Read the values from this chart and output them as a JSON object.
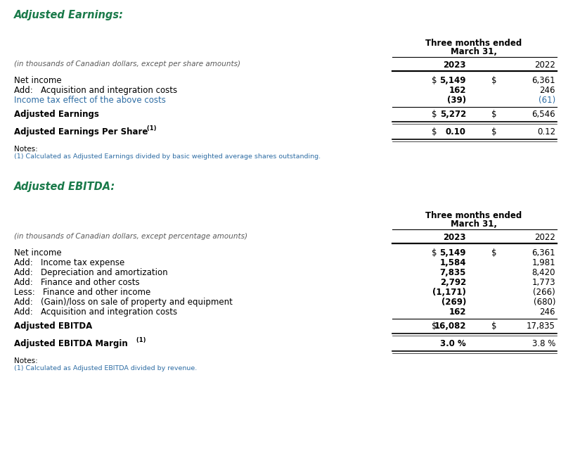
{
  "bg_color": "#ffffff",
  "green_color": "#1a7a4a",
  "blue_color": "#2e6da4",
  "black_color": "#000000",
  "gray_color": "#595959",
  "section1_title": "Adjusted Earnings:",
  "section1_subtitle": "(in thousands of Canadian dollars, except per share amounts)",
  "section1_header1": "Three months ended",
  "section1_header2": "March 31,",
  "section1_col2023": "2023",
  "section1_col2022": "2022",
  "section1_rows": [
    {
      "label": "Net income",
      "col2023": "5,149",
      "col2022": "6,361",
      "dollar2023": true,
      "dollar2022": true,
      "blue": false
    },
    {
      "label": "Add:   Acquisition and integration costs",
      "col2023": "162",
      "col2022": "246",
      "dollar2023": false,
      "dollar2022": false,
      "blue": false
    },
    {
      "label": "Income tax effect of the above costs",
      "col2023": "(39)",
      "col2022": "(61)",
      "dollar2023": false,
      "dollar2022": false,
      "blue": true
    }
  ],
  "section1_total_row": {
    "label": "Adjusted Earnings",
    "col2023": "5,272",
    "col2022": "6,546",
    "dollar2023": true,
    "dollar2022": true
  },
  "section1_per_share_row": {
    "label": "Adjusted Earnings Per Share",
    "superscript": " (1)",
    "col2023": "0.10",
    "col2022": "0.12",
    "dollar2023": true,
    "dollar2022": true
  },
  "section1_notes_title": "Notes:",
  "section1_notes_1": "(1) Calculated as Adjusted Earnings divided by basic weighted average shares outstanding.",
  "section2_title": "Adjusted EBITDA:",
  "section2_subtitle": "(in thousands of Canadian dollars, except percentage amounts)",
  "section2_header1": "Three months ended",
  "section2_header2": "March 31,",
  "section2_col2023": "2023",
  "section2_col2022": "2022",
  "section2_rows": [
    {
      "label": "Net income",
      "col2023": "5,149",
      "col2022": "6,361",
      "dollar2023": true,
      "dollar2022": true
    },
    {
      "label": "Add:   Income tax expense",
      "col2023": "1,584",
      "col2022": "1,981",
      "dollar2023": false,
      "dollar2022": false
    },
    {
      "label": "Add:   Depreciation and amortization",
      "col2023": "7,835",
      "col2022": "8,420",
      "dollar2023": false,
      "dollar2022": false
    },
    {
      "label": "Add:   Finance and other costs",
      "col2023": "2,792",
      "col2022": "1,773",
      "dollar2023": false,
      "dollar2022": false
    },
    {
      "label": "Less:   Finance and other income",
      "col2023": "(1,171)",
      "col2022": "(266)",
      "dollar2023": false,
      "dollar2022": false
    },
    {
      "label": "Add:   (Gain)/loss on sale of property and equipment",
      "col2023": "(269)",
      "col2022": "(680)",
      "dollar2023": false,
      "dollar2022": false
    },
    {
      "label": "Add:   Acquisition and integration costs",
      "col2023": "162",
      "col2022": "246",
      "dollar2023": false,
      "dollar2022": false
    }
  ],
  "section2_total_row": {
    "label": "Adjusted EBITDA",
    "col2023": "16,082",
    "col2022": "17,835",
    "dollar2023": true,
    "dollar2022": true
  },
  "section2_margin_row": {
    "label": "Adjusted EBITDA Margin",
    "superscript": " (1)",
    "col2023": "3.0 %",
    "col2022": "3.8 %"
  },
  "section2_notes_title": "Notes:",
  "section2_notes_1": "(1) Calculated as Adjusted EBITDA divided by revenue.",
  "fig_w": 7.98,
  "fig_h": 6.41,
  "dpi": 100
}
